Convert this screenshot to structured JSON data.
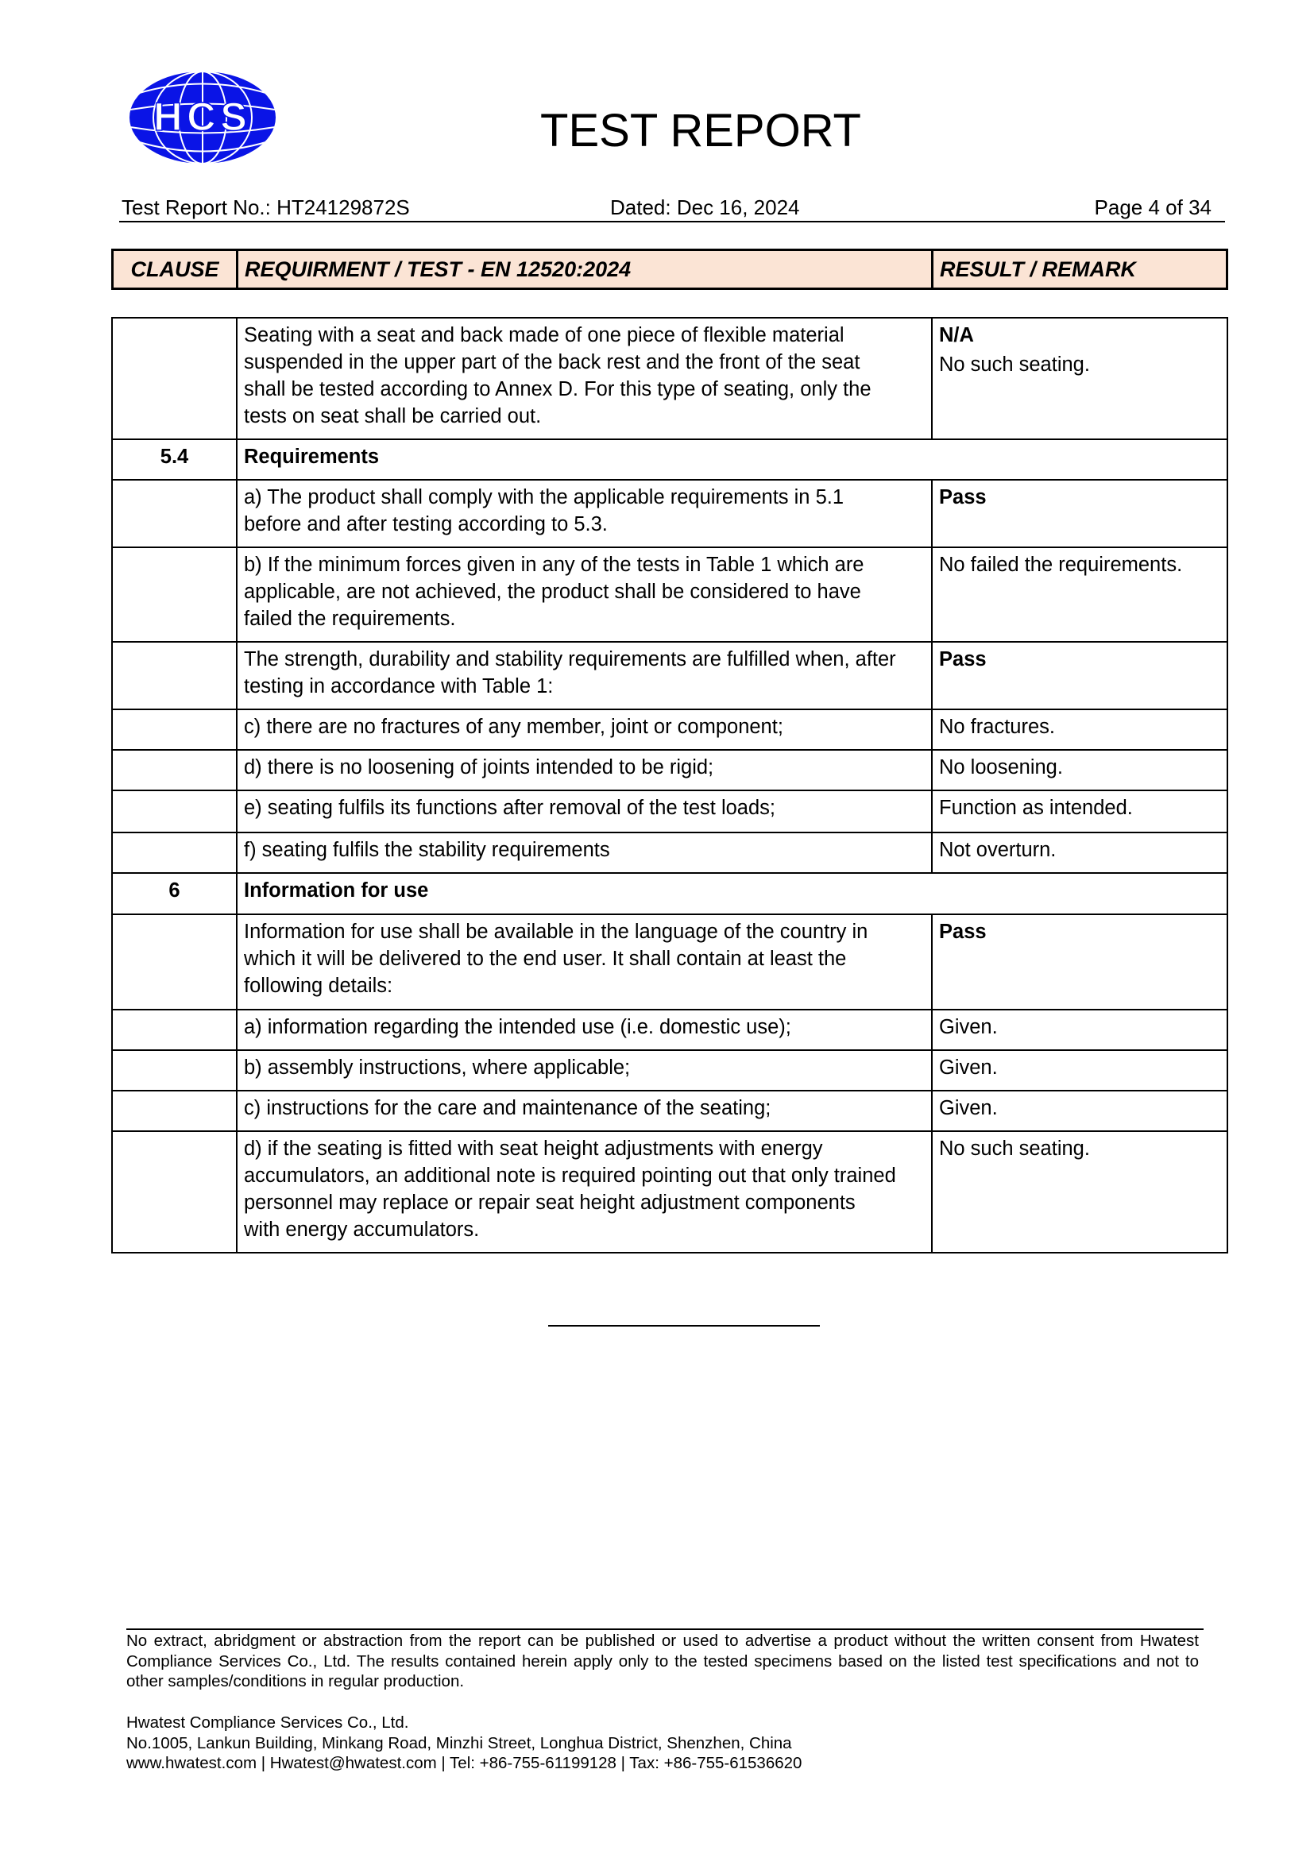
{
  "logo": {
    "text": "HCS",
    "color": "#0a14e6"
  },
  "header": {
    "title": "TEST REPORT",
    "report_no": "Test Report No.: HT24129872S",
    "dated": "Dated:  Dec 16, 2024",
    "page": "Page 4 of 34"
  },
  "table_header": {
    "clause": "CLAUSE",
    "requirement": "REQUIRMENT / TEST - EN 12520:2024",
    "result": "RESULT / REMARK",
    "fill_color": "#fbe4d5"
  },
  "rows": [
    {
      "clause": "",
      "text": "Seating with a seat and back made of one piece of flexible material\nsuspended in the upper part of the back rest and the front of the seat\nshall be tested according to Annex D. For this type of seating, only the\ntests on seat shall be carried out.",
      "result_bold": "N/A",
      "result": "No such seating."
    },
    {
      "clause": "5.4",
      "section": "Requirements"
    },
    {
      "clause": "",
      "text": "a) The product shall comply with the applicable requirements in 5.1\nbefore and after testing according to 5.3.",
      "result_bold": "Pass"
    },
    {
      "clause": "",
      "text": "b) If the minimum forces given in any of the tests in Table 1 which are\napplicable, are not achieved, the product shall be considered to have\nfailed the requirements.",
      "result": "No failed the requirements."
    },
    {
      "clause": "",
      "text": "The strength, durability and stability requirements are fulfilled when, after\ntesting in accordance with Table 1:",
      "result_bold": "Pass"
    },
    {
      "clause": "",
      "text": "c) there are no fractures of any member, joint or component;",
      "result": "No fractures."
    },
    {
      "clause": "",
      "text": "d) there is no loosening of joints intended to be rigid;",
      "result": "No loosening."
    },
    {
      "clause": "",
      "text": "e) seating fulfils its functions after removal of the test loads;",
      "result": "Function as intended."
    },
    {
      "clause": "",
      "text": "f) seating fulfils the stability requirements",
      "result": "Not overturn."
    },
    {
      "clause": "6",
      "section": "Information for use"
    },
    {
      "clause": "",
      "text": "Information for use shall be available in the language of the country in\nwhich it will be delivered to the end user. It shall contain at least the\nfollowing details:",
      "result_bold": "Pass"
    },
    {
      "clause": "",
      "text": "a) information regarding the intended use (i.e. domestic use);",
      "result": "Given."
    },
    {
      "clause": "",
      "text": "b) assembly instructions, where applicable;",
      "result": "Given."
    },
    {
      "clause": "",
      "text": "c) instructions for the care and maintenance of the seating;",
      "result": "Given."
    },
    {
      "clause": "",
      "text": "d) if the seating is fitted with seat height adjustments with energy\naccumulators, an additional note is required pointing out that only trained\npersonnel may replace or repair seat height adjustment components\nwith energy accumulators.",
      "result": "No such seating."
    }
  ],
  "footer": {
    "disclaimer": "No extract, abridgment or abstraction from the report can be published or used to advertise a product without the written consent from Hwatest Compliance Services Co., Ltd. The results contained herein apply only to the tested specimens based on the listed test specifications and not to other samples/conditions in regular production.",
    "company": "Hwatest Compliance Services Co., Ltd.",
    "address": "No.1005, Lankun Building, Minkang Road, Minzhi Street, Longhua District, Shenzhen, China",
    "contact": "www.hwatest.com | Hwatest@hwatest.com | Tel: +86-755-61199128 | Tax: +86-755-61536620"
  }
}
